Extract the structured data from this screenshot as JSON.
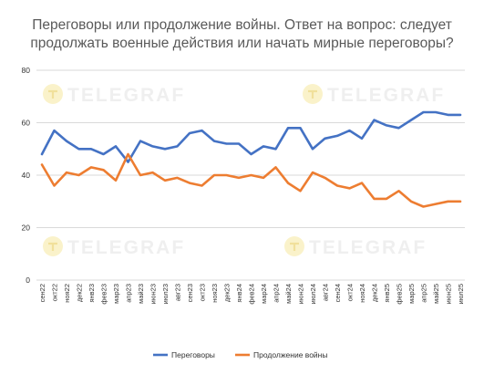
{
  "chart_data": {
    "type": "line",
    "title_lines": [
      "Переговоры или продолжение войны. Ответ на вопрос: следует",
      "продолжать военные действия или начать мирные переговоры?"
    ],
    "xlabel": "",
    "ylabel": "",
    "ylim": [
      0,
      80
    ],
    "yticks": [
      "0",
      "20",
      "40",
      "60",
      "80"
    ],
    "grid": true,
    "legend_position": "bottom",
    "categories": [
      "сен22",
      "окт22",
      "ноя22",
      "дек22",
      "янв23",
      "фев23",
      "мар23",
      "апр23",
      "май23",
      "июн23",
      "июл23",
      "авг23",
      "сен23",
      "окт23",
      "ноя23",
      "дек23",
      "янв24",
      "фев24",
      "мар24",
      "апр24",
      "май24",
      "июн24",
      "июл24",
      "авг24",
      "сен24",
      "окт24",
      "ноя24",
      "дек24",
      "янв25",
      "фев25",
      "мар25",
      "апр25",
      "май25",
      "июн25",
      "июл25"
    ],
    "series": [
      {
        "name": "Переговоры",
        "color": "#4472c4",
        "values": [
          48,
          57,
          53,
          50,
          50,
          48,
          51,
          45,
          53,
          51,
          50,
          51,
          56,
          57,
          53,
          52,
          52,
          48,
          51,
          50,
          58,
          58,
          50,
          54,
          55,
          57,
          54,
          61,
          59,
          58,
          61,
          64,
          64,
          63,
          63
        ]
      },
      {
        "name": "Продолжение войны",
        "color": "#ed7d31",
        "values": [
          44,
          36,
          41,
          40,
          43,
          42,
          38,
          48,
          40,
          41,
          38,
          39,
          37,
          36,
          40,
          40,
          39,
          40,
          39,
          43,
          37,
          34,
          41,
          39,
          36,
          35,
          37,
          31,
          31,
          34,
          30,
          28,
          29,
          30,
          30
        ]
      }
    ]
  },
  "watermark": {
    "text": "TELEGRAF",
    "icon": "telegraf-logo-icon"
  }
}
